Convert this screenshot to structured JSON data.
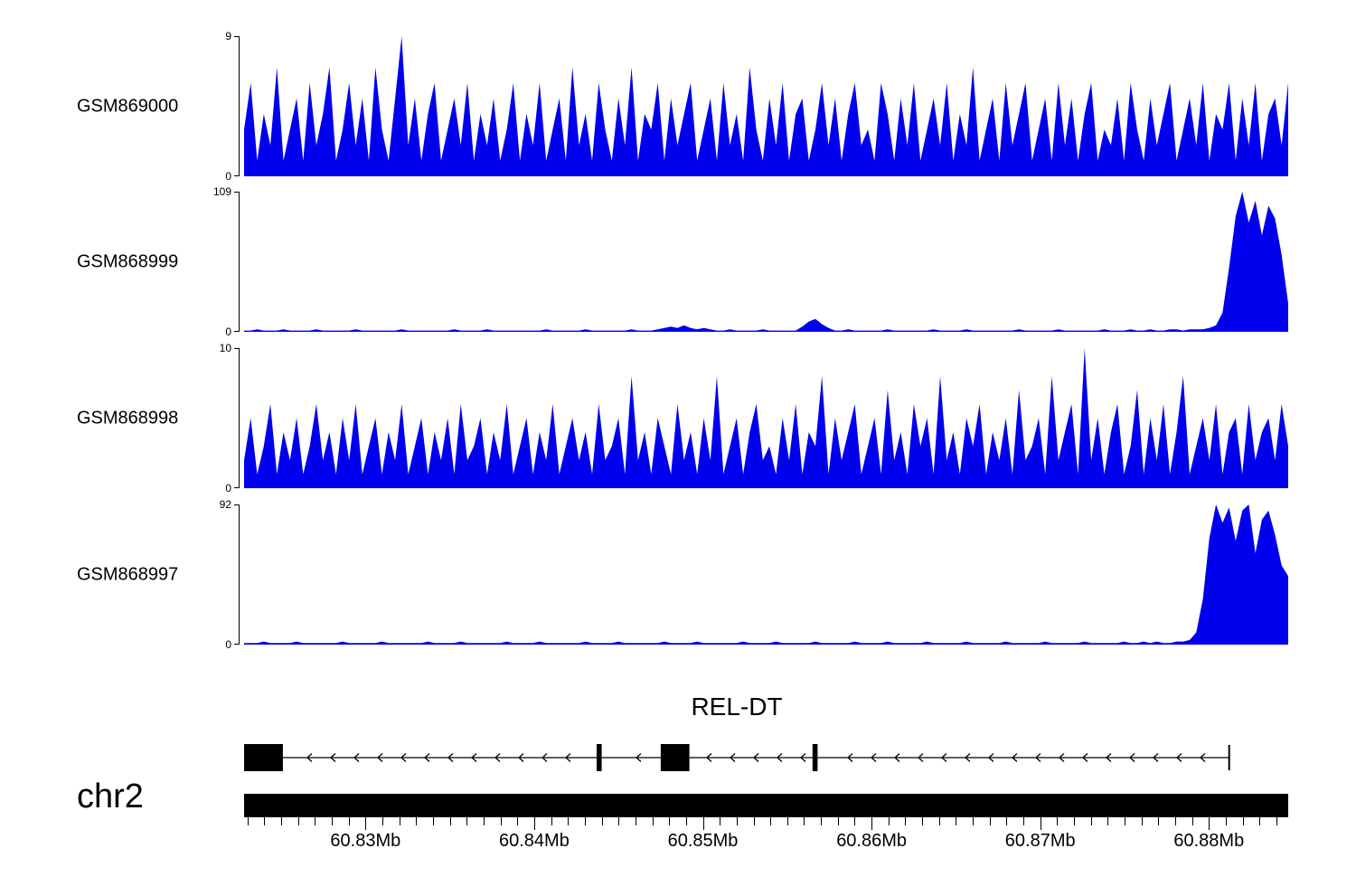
{
  "colors": {
    "coverage_fill": "#0000ee",
    "axis": "#000000",
    "background": "#ffffff"
  },
  "chart_data": {
    "type": "area",
    "title": "",
    "description": "Genome browser coverage view of four samples over chr2 near the REL-DT gene",
    "x_axis": {
      "unit": "Mb",
      "min": 60.8228,
      "max": 60.8847,
      "major_ticks": [
        60.83,
        60.84,
        60.85,
        60.86,
        60.87,
        60.88
      ],
      "tick_labels": [
        "60.83Mb",
        "60.84Mb",
        "60.85Mb",
        "60.86Mb",
        "60.87Mb",
        "60.88Mb"
      ],
      "minor_tick_step": 0.001
    },
    "tracks": [
      {
        "name": "GSM869000",
        "ymin": 0,
        "ymax": 9,
        "values": [
          3,
          6,
          1,
          4,
          2,
          7,
          1,
          3,
          5,
          1,
          6,
          2,
          4,
          7,
          1,
          3,
          6,
          2,
          5,
          1,
          7,
          3,
          1,
          5,
          9,
          2,
          5,
          1,
          4,
          6,
          1,
          3,
          5,
          2,
          6,
          1,
          4,
          2,
          5,
          1,
          3,
          6,
          1,
          4,
          2,
          6,
          1,
          3,
          5,
          1,
          7,
          2,
          4,
          1,
          6,
          3,
          1,
          5,
          2,
          7,
          1,
          4,
          3,
          6,
          1,
          5,
          2,
          4,
          6,
          1,
          3,
          5,
          1,
          6,
          2,
          4,
          1,
          7,
          3,
          1,
          5,
          2,
          6,
          1,
          4,
          5,
          1,
          3,
          6,
          2,
          5,
          1,
          4,
          6,
          2,
          3,
          1,
          6,
          4,
          1,
          5,
          2,
          6,
          1,
          3,
          5,
          2,
          6,
          1,
          4,
          2,
          7,
          1,
          3,
          5,
          1,
          6,
          2,
          4,
          6,
          1,
          3,
          5,
          1,
          6,
          2,
          5,
          1,
          4,
          6,
          1,
          3,
          2,
          5,
          1,
          6,
          3,
          1,
          5,
          2,
          4,
          6,
          1,
          3,
          5,
          2,
          6,
          1,
          4,
          3,
          6,
          1,
          5,
          2,
          6,
          1,
          4,
          5,
          2,
          6
        ]
      },
      {
        "name": "GSM868999",
        "ymin": 0,
        "ymax": 109,
        "values": [
          1,
          1,
          2,
          1,
          1,
          1,
          2,
          1,
          1,
          1,
          1,
          2,
          1,
          1,
          1,
          1,
          1,
          2,
          1,
          1,
          1,
          1,
          1,
          1,
          2,
          1,
          1,
          1,
          1,
          1,
          1,
          1,
          2,
          1,
          1,
          1,
          1,
          2,
          1,
          1,
          1,
          1,
          1,
          1,
          1,
          1,
          2,
          1,
          1,
          1,
          1,
          1,
          2,
          1,
          1,
          1,
          1,
          1,
          1,
          2,
          1,
          1,
          1,
          2,
          3,
          4,
          3,
          5,
          3,
          2,
          3,
          2,
          1,
          1,
          2,
          1,
          1,
          1,
          1,
          2,
          1,
          1,
          1,
          1,
          1,
          4,
          8,
          10,
          6,
          3,
          1,
          1,
          2,
          1,
          1,
          1,
          1,
          1,
          2,
          1,
          1,
          1,
          1,
          1,
          1,
          2,
          1,
          1,
          1,
          1,
          2,
          1,
          1,
          1,
          1,
          1,
          1,
          1,
          2,
          1,
          1,
          1,
          1,
          1,
          2,
          1,
          1,
          1,
          1,
          1,
          1,
          2,
          1,
          1,
          1,
          2,
          1,
          1,
          2,
          1,
          1,
          2,
          2,
          1,
          2,
          2,
          2,
          3,
          5,
          15,
          50,
          90,
          109,
          85,
          102,
          75,
          98,
          88,
          60,
          22
        ]
      },
      {
        "name": "GSM868998",
        "ymin": 0,
        "ymax": 10,
        "values": [
          2,
          5,
          1,
          3,
          6,
          1,
          4,
          2,
          5,
          1,
          3,
          6,
          2,
          4,
          1,
          5,
          2,
          6,
          1,
          3,
          5,
          1,
          4,
          2,
          6,
          1,
          3,
          5,
          1,
          4,
          2,
          5,
          1,
          6,
          2,
          3,
          5,
          1,
          4,
          2,
          6,
          1,
          3,
          5,
          1,
          4,
          2,
          6,
          1,
          3,
          5,
          2,
          4,
          1,
          6,
          2,
          3,
          5,
          1,
          8,
          2,
          4,
          1,
          5,
          3,
          1,
          6,
          2,
          4,
          1,
          5,
          2,
          8,
          1,
          3,
          5,
          1,
          4,
          6,
          2,
          3,
          1,
          5,
          2,
          6,
          1,
          4,
          3,
          8,
          1,
          5,
          2,
          4,
          6,
          1,
          3,
          5,
          1,
          7,
          2,
          4,
          1,
          6,
          3,
          5,
          1,
          8,
          2,
          4,
          1,
          5,
          3,
          6,
          1,
          4,
          2,
          5,
          1,
          7,
          2,
          3,
          5,
          1,
          8,
          2,
          4,
          6,
          1,
          10,
          2,
          5,
          1,
          4,
          6,
          1,
          3,
          7,
          1,
          5,
          2,
          6,
          1,
          4,
          8,
          1,
          3,
          5,
          2,
          6,
          1,
          4,
          5,
          1,
          6,
          2,
          4,
          5,
          2,
          6,
          3
        ]
      },
      {
        "name": "GSM868997",
        "ymin": 0,
        "ymax": 92,
        "values": [
          1,
          1,
          1,
          2,
          1,
          1,
          1,
          1,
          2,
          1,
          1,
          1,
          1,
          1,
          1,
          2,
          1,
          1,
          1,
          1,
          1,
          2,
          1,
          1,
          1,
          1,
          1,
          1,
          2,
          1,
          1,
          1,
          1,
          2,
          1,
          1,
          1,
          1,
          1,
          1,
          2,
          1,
          1,
          1,
          1,
          2,
          1,
          1,
          1,
          1,
          1,
          1,
          2,
          1,
          1,
          1,
          1,
          2,
          1,
          1,
          1,
          1,
          1,
          1,
          2,
          1,
          1,
          1,
          1,
          2,
          1,
          1,
          1,
          1,
          1,
          1,
          2,
          1,
          1,
          1,
          1,
          2,
          1,
          1,
          1,
          1,
          1,
          2,
          1,
          1,
          1,
          1,
          1,
          2,
          1,
          1,
          1,
          1,
          2,
          1,
          1,
          1,
          1,
          1,
          2,
          1,
          1,
          1,
          1,
          1,
          2,
          1,
          1,
          1,
          1,
          1,
          2,
          1,
          1,
          1,
          1,
          1,
          2,
          1,
          1,
          1,
          1,
          1,
          2,
          1,
          1,
          1,
          1,
          1,
          2,
          1,
          1,
          2,
          1,
          2,
          1,
          1,
          2,
          2,
          3,
          8,
          30,
          70,
          92,
          80,
          90,
          68,
          88,
          92,
          60,
          82,
          88,
          72,
          52,
          45
        ]
      }
    ],
    "gene_track": {
      "title": "REL-DT",
      "chromosome": "chr2",
      "strand": "-",
      "gene_start": 60.8228,
      "gene_end": 60.8812,
      "exons": [
        {
          "start": 60.8228,
          "end": 60.8251,
          "type": "box"
        },
        {
          "start": 60.8437,
          "end": 60.844,
          "type": "thin"
        },
        {
          "start": 60.8475,
          "end": 60.8492,
          "type": "box"
        },
        {
          "start": 60.8565,
          "end": 60.8568,
          "type": "thin"
        }
      ]
    }
  }
}
